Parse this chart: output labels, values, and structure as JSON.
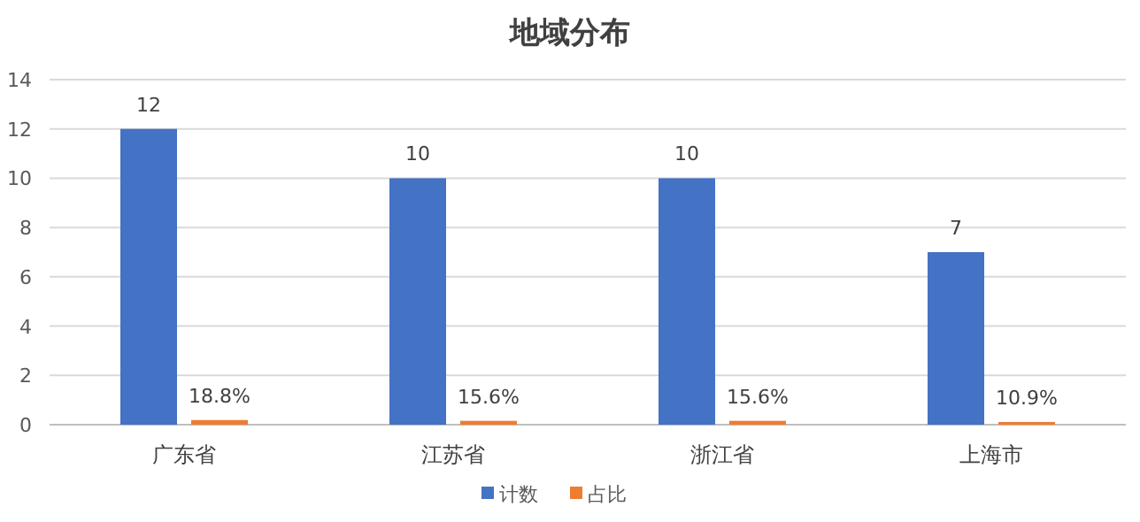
{
  "chart_data": {
    "type": "bar",
    "title": "地域分布",
    "categories": [
      "广东省",
      "江苏省",
      "浙江省",
      "上海市"
    ],
    "series": [
      {
        "name": "计数",
        "color": "#4472c4",
        "values": [
          12,
          10,
          10,
          7
        ],
        "value_labels": [
          "12",
          "10",
          "10",
          "7"
        ]
      },
      {
        "name": "占比",
        "color": "#ed7d31",
        "values": [
          0.188,
          0.156,
          0.156,
          0.109
        ],
        "value_labels": [
          "18.8%",
          "15.6%",
          "15.6%",
          "10.9%"
        ]
      }
    ],
    "ylim": [
      0,
      14
    ],
    "yticks": [
      0,
      2,
      4,
      6,
      8,
      10,
      12,
      14
    ],
    "grid": "y",
    "legend": "bottom"
  }
}
